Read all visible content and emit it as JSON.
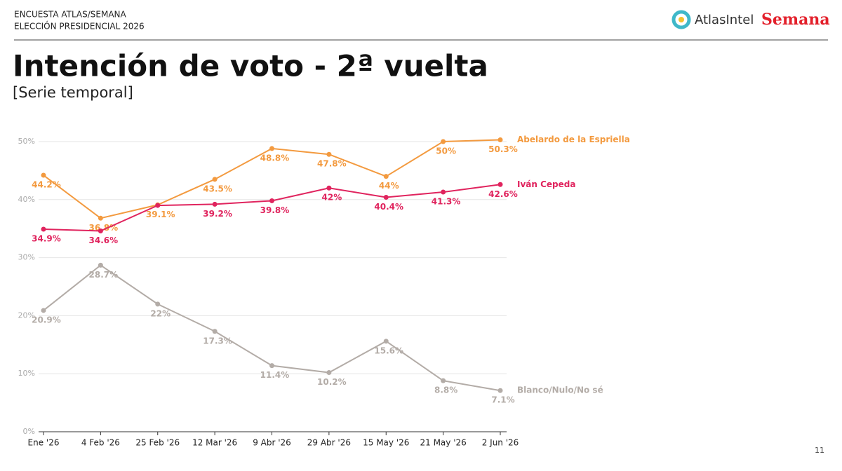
{
  "header": {
    "kicker": "ENCUESTA ATLAS/SEMANA",
    "subkicker": "ELECCIÓN PRESIDENCIAL 2026",
    "logo_left": "AtlasIntel",
    "logo_right": "Semana"
  },
  "title": "Intención de voto - 2ª vuelta",
  "subtitle": "[Serie temporal]",
  "page_number": "11",
  "chart_data": {
    "type": "line",
    "categories": [
      "Ene '26",
      "4 Feb '26",
      "25 Feb '26",
      "12 Mar '26",
      "9 Abr '26",
      "29 Abr '26",
      "15 May '26",
      "21 May '26",
      "2 Jun '26"
    ],
    "series": [
      {
        "name": "Abelardo de la Espriella",
        "color": "#f39a3f",
        "values": [
          44.2,
          36.8,
          39.1,
          43.5,
          48.8,
          47.8,
          44,
          50,
          50.3
        ],
        "value_labels": [
          "44.2%",
          "36.8%",
          "39.1%",
          "43.5%",
          "48.8%",
          "47.8%",
          "44%",
          "50%",
          "50.3%"
        ]
      },
      {
        "name": "Iván Cepeda",
        "color": "#e0245e",
        "values": [
          34.9,
          34.6,
          39,
          39.2,
          39.8,
          42,
          40.4,
          41.3,
          42.6
        ],
        "value_labels": [
          "34.9%",
          "34.6%",
          null,
          "39.2%",
          "39.8%",
          "42%",
          "40.4%",
          "41.3%",
          "42.6%"
        ]
      },
      {
        "name": "Blanco/Nulo/No sé",
        "color": "#b3aca7",
        "values": [
          20.9,
          28.7,
          22,
          17.3,
          11.4,
          10.2,
          15.6,
          8.8,
          7.1
        ],
        "value_labels": [
          "20.9%",
          "28.7%",
          "22%",
          "17.3%",
          "11.4%",
          "10.2%",
          "15.6%",
          "8.8%",
          "7.1%"
        ]
      }
    ],
    "ylim": [
      0,
      50
    ],
    "yticks": [
      {
        "value": 0,
        "label": "0%"
      },
      {
        "value": 10,
        "label": "10%"
      },
      {
        "value": 20,
        "label": "20%"
      },
      {
        "value": 30,
        "label": "30%"
      },
      {
        "value": 40,
        "label": "40%"
      },
      {
        "value": 50,
        "label": "50%"
      }
    ],
    "grid": true
  }
}
